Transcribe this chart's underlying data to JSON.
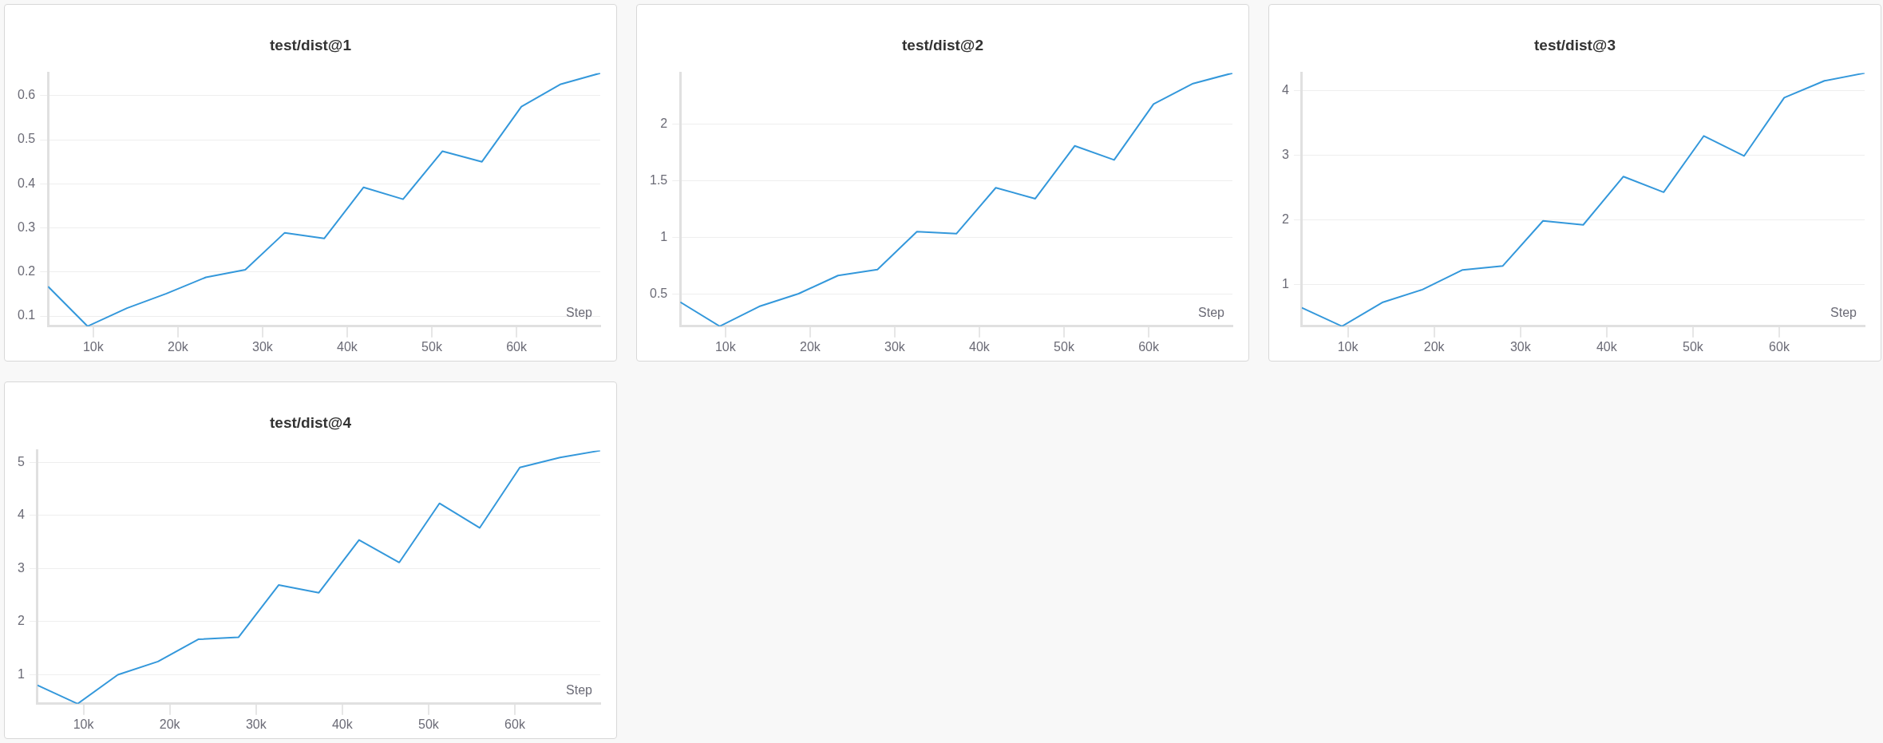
{
  "chart_data": [
    {
      "type": "line",
      "title": "test/dist@1",
      "xlabel": "Step",
      "grid": "y",
      "color": "#3498db",
      "x": [
        4660,
        9320,
        13980,
        18640,
        23300,
        27960,
        32620,
        37280,
        41940,
        46600,
        51260,
        55920,
        60580,
        65240,
        69900
      ],
      "values": [
        0.167,
        0.077,
        0.118,
        0.151,
        0.188,
        0.205,
        0.289,
        0.276,
        0.392,
        0.365,
        0.474,
        0.45,
        0.575,
        0.626,
        0.651
      ],
      "xlim": [
        4660,
        69900
      ],
      "xticks": [
        {
          "value": 10000,
          "label": "10k"
        },
        {
          "value": 20000,
          "label": "20k"
        },
        {
          "value": 30000,
          "label": "30k"
        },
        {
          "value": 40000,
          "label": "40k"
        },
        {
          "value": 50000,
          "label": "50k"
        },
        {
          "value": 60000,
          "label": "60k"
        }
      ],
      "ylim": [
        0.077,
        0.651
      ],
      "yticks": [
        0.1,
        0.2,
        0.3,
        0.4,
        0.5,
        0.6
      ]
    },
    {
      "type": "line",
      "title": "test/dist@2",
      "xlabel": "Step",
      "grid": "y",
      "color": "#3498db",
      "x": [
        4660,
        9320,
        13980,
        18640,
        23300,
        27960,
        32620,
        37280,
        41940,
        46600,
        51260,
        55920,
        60580,
        65240,
        69900
      ],
      "values": [
        0.433,
        0.22,
        0.394,
        0.507,
        0.667,
        0.72,
        1.053,
        1.035,
        1.44,
        1.344,
        1.809,
        1.685,
        2.177,
        2.358,
        2.45
      ],
      "xlim": [
        4660,
        69900
      ],
      "xticks": [
        {
          "value": 10000,
          "label": "10k"
        },
        {
          "value": 20000,
          "label": "20k"
        },
        {
          "value": 30000,
          "label": "30k"
        },
        {
          "value": 40000,
          "label": "40k"
        },
        {
          "value": 50000,
          "label": "50k"
        },
        {
          "value": 60000,
          "label": "60k"
        }
      ],
      "ylim": [
        0.22,
        2.45
      ],
      "yticks": [
        0.5,
        1,
        1.5,
        2
      ]
    },
    {
      "type": "line",
      "title": "test/dist@3",
      "xlabel": "Step",
      "grid": "y",
      "color": "#3498db",
      "x": [
        4660,
        9320,
        13980,
        18640,
        23300,
        27960,
        32620,
        37280,
        41940,
        46600,
        51260,
        55920,
        60580,
        65240,
        69900
      ],
      "values": [
        0.639,
        0.353,
        0.72,
        0.92,
        1.225,
        1.286,
        1.983,
        1.921,
        2.668,
        2.426,
        3.297,
        2.986,
        3.888,
        4.149,
        4.268
      ],
      "xlim": [
        4660,
        69900
      ],
      "xticks": [
        {
          "value": 10000,
          "label": "10k"
        },
        {
          "value": 20000,
          "label": "20k"
        },
        {
          "value": 30000,
          "label": "30k"
        },
        {
          "value": 40000,
          "label": "40k"
        },
        {
          "value": 50000,
          "label": "50k"
        },
        {
          "value": 60000,
          "label": "60k"
        }
      ],
      "ylim": [
        0.353,
        4.268
      ],
      "yticks": [
        1,
        2,
        3,
        4
      ]
    },
    {
      "type": "line",
      "title": "test/dist@4",
      "xlabel": "Step",
      "grid": "y",
      "color": "#3498db",
      "x": [
        4660,
        9320,
        13980,
        18640,
        23300,
        27960,
        32620,
        37280,
        41940,
        46600,
        51260,
        55920,
        60580,
        65240,
        69900
      ],
      "values": [
        0.803,
        0.455,
        1.0,
        1.25,
        1.667,
        1.705,
        2.689,
        2.545,
        3.538,
        3.114,
        4.227,
        3.765,
        4.902,
        5.091,
        5.22
      ],
      "xlim": [
        4660,
        69900
      ],
      "xticks": [
        {
          "value": 10000,
          "label": "10k"
        },
        {
          "value": 20000,
          "label": "20k"
        },
        {
          "value": 30000,
          "label": "30k"
        },
        {
          "value": 40000,
          "label": "40k"
        },
        {
          "value": 50000,
          "label": "50k"
        },
        {
          "value": 60000,
          "label": "60k"
        }
      ],
      "ylim": [
        0.455,
        5.22
      ],
      "yticks": [
        1,
        2,
        3,
        4,
        5
      ]
    }
  ]
}
